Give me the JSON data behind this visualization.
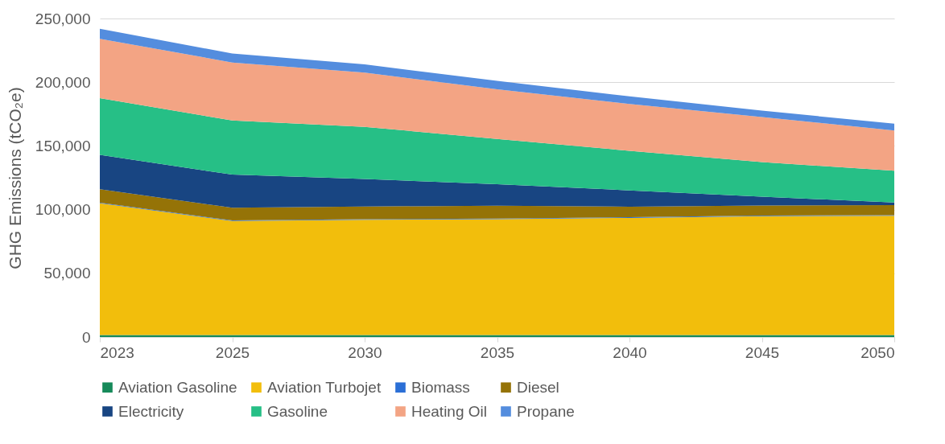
{
  "chart_data": {
    "type": "area",
    "stacked": true,
    "ylabel": "GHG Emissions (tCO₂e)",
    "categories": [
      "2023",
      "2025",
      "2030",
      "2035",
      "2040",
      "2045",
      "2050"
    ],
    "ylim": [
      0,
      250000
    ],
    "yticks": [
      {
        "value": 0,
        "label": "0"
      },
      {
        "value": 50000,
        "label": "50,000"
      },
      {
        "value": 100000,
        "label": "100,000"
      },
      {
        "value": 150000,
        "label": "150,000"
      },
      {
        "value": 200000,
        "label": "200,000"
      },
      {
        "value": 250000,
        "label": "250,000"
      }
    ],
    "grid": "y",
    "legend": "bottom",
    "series": [
      {
        "name": "Aviation Gasoline",
        "color": "#168a5a",
        "values": [
          1500,
          1500,
          1500,
          1500,
          1500,
          1500,
          1500
        ]
      },
      {
        "name": "Aviation Turbojet",
        "color": "#f2be0c",
        "values": [
          103500,
          89500,
          90500,
          91000,
          92000,
          93300,
          93700
        ]
      },
      {
        "name": "Biomass",
        "color": "#2b6fd6",
        "values": [
          500,
          500,
          500,
          500,
          500,
          500,
          500
        ]
      },
      {
        "name": "Diesel",
        "color": "#957307",
        "values": [
          10500,
          10000,
          10000,
          10000,
          8300,
          7900,
          7900
        ]
      },
      {
        "name": "Electricity",
        "color": "#184582",
        "values": [
          27000,
          26000,
          21500,
          17000,
          12800,
          6900,
          2000
        ]
      },
      {
        "name": "Gasoline",
        "color": "#26bf86",
        "values": [
          44500,
          42500,
          41000,
          35500,
          31100,
          27200,
          25000
        ]
      },
      {
        "name": "Heating Oil",
        "color": "#f3a484",
        "values": [
          46500,
          45500,
          42500,
          39000,
          36700,
          35400,
          31500
        ]
      },
      {
        "name": "Propane",
        "color": "#548dde",
        "values": [
          8000,
          7000,
          6500,
          6500,
          6000,
          5000,
          5300
        ]
      }
    ]
  }
}
